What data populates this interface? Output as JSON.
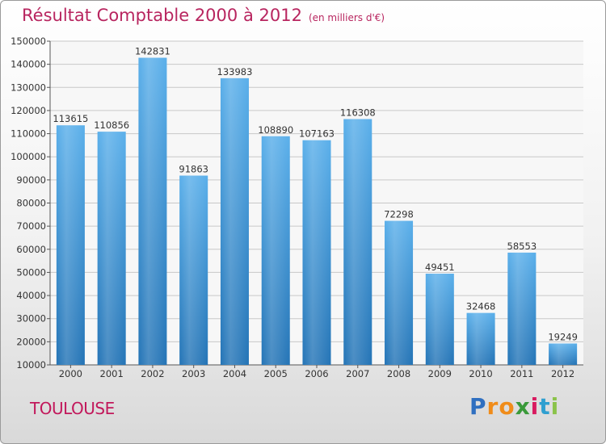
{
  "header": {
    "title": "Résultat Comptable 2000 à 2012",
    "subtitle": "(en milliers d'€)"
  },
  "footer": {
    "city": "TOULOUSE",
    "logo": "Proxiti"
  },
  "colors": {
    "bar_top": "#5aafea",
    "bar_bottom": "#2474b6",
    "title": "#b8255f",
    "grid": "#c8c8c8"
  },
  "chart_data": {
    "type": "bar",
    "title": "Résultat Comptable 2000 à 2012",
    "subtitle": "(en milliers d'€)",
    "xlabel": "",
    "ylabel": "",
    "ylim": [
      10000,
      150000
    ],
    "yticks": [
      10000,
      20000,
      30000,
      40000,
      50000,
      60000,
      70000,
      80000,
      90000,
      100000,
      110000,
      120000,
      130000,
      140000,
      150000
    ],
    "grid": true,
    "categories": [
      "2000",
      "2001",
      "2002",
      "2003",
      "2004",
      "2005",
      "2006",
      "2007",
      "2008",
      "2009",
      "2010",
      "2011",
      "2012"
    ],
    "values": [
      113615,
      110856,
      142831,
      91863,
      133983,
      108890,
      107163,
      116308,
      72298,
      49451,
      32468,
      58553,
      19249
    ]
  }
}
